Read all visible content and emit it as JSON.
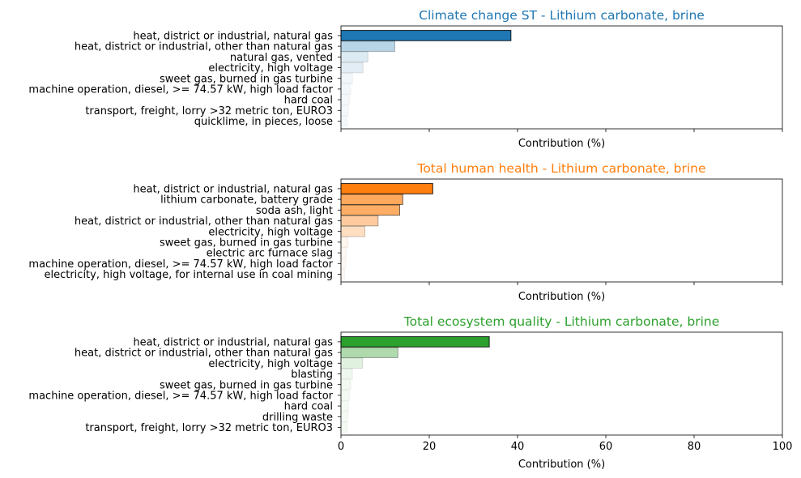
{
  "chart_data": [
    {
      "type": "bar",
      "orientation": "horizontal",
      "title": "Climate change ST - Lithium carbonate, brine",
      "title_color": "#1f77b4",
      "bar_color": "#1f77b4",
      "xlabel": "Contribution (%)",
      "xlim": [
        0,
        100
      ],
      "xticks": [
        0,
        20,
        40,
        60,
        80,
        100
      ],
      "show_tick_labels": false,
      "categories": [
        "heat, district or industrial, natural gas",
        "heat, district or industrial, other than natural gas",
        "natural gas, vented",
        "electricity, high voltage",
        "sweet gas, burned in gas turbine",
        "machine operation, diesel, >= 74.57 kW, high load factor",
        "hard coal",
        "transport, freight, lorry >32 metric ton, EURO3",
        "quicklime, in pieces, loose"
      ],
      "values": [
        38.5,
        12.2,
        6.1,
        5.0,
        2.6,
        2.2,
        1.9,
        1.7,
        1.4
      ]
    },
    {
      "type": "bar",
      "orientation": "horizontal",
      "title": "Total human health - Lithium carbonate, brine",
      "title_color": "#ff7f0e",
      "bar_color": "#ff7f0e",
      "xlabel": "Contribution (%)",
      "xlim": [
        0,
        100
      ],
      "xticks": [
        0,
        20,
        40,
        60,
        80,
        100
      ],
      "show_tick_labels": false,
      "categories": [
        "heat, district or industrial, natural gas",
        "lithium carbonate, battery grade",
        "soda ash, light",
        "heat, district or industrial, other than natural gas",
        "electricity, high voltage",
        "sweet gas, burned in gas turbine",
        "electric arc furnace slag",
        "machine operation, diesel, >= 74.57 kW, high load factor",
        "electricity, high voltage, for internal use in coal mining"
      ],
      "values": [
        20.8,
        14.0,
        13.3,
        8.4,
        5.4,
        1.6,
        1.2,
        1.0,
        0.8
      ]
    },
    {
      "type": "bar",
      "orientation": "horizontal",
      "title": "Total ecosystem quality - Lithium carbonate, brine",
      "title_color": "#2ca02c",
      "bar_color": "#2ca02c",
      "xlabel": "Contribution (%)",
      "xlim": [
        0,
        100
      ],
      "xticks": [
        0,
        20,
        40,
        60,
        80,
        100
      ],
      "show_tick_labels": true,
      "categories": [
        "heat, district or industrial, natural gas",
        "heat, district or industrial, other than natural gas",
        "electricity, high voltage",
        "blasting",
        "sweet gas, burned in gas turbine",
        "machine operation, diesel, >= 74.57 kW, high load factor",
        "hard coal",
        "drilling waste",
        "transport, freight, lorry >32 metric ton, EURO3"
      ],
      "values": [
        33.6,
        12.9,
        4.9,
        2.6,
        2.2,
        1.9,
        1.7,
        1.6,
        1.4
      ]
    }
  ]
}
